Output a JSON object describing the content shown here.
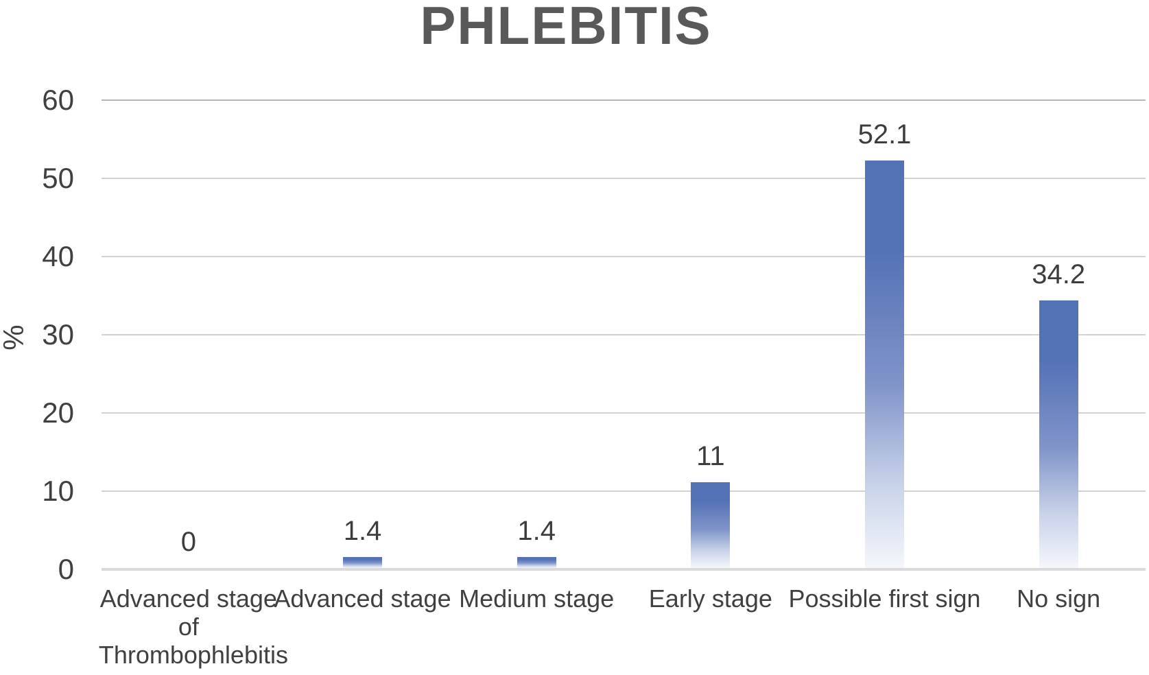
{
  "chart_data": {
    "type": "bar",
    "title": "PHLEBITIS",
    "xlabel": "",
    "ylabel": "%",
    "categories": [
      "Advanced stage of Thrombophlebitis",
      "Advanced stage",
      "Medium stage",
      "Early stage",
      "Possible first sign",
      "No sign"
    ],
    "values": [
      0,
      1.4,
      1.4,
      11,
      52.1,
      34.2
    ],
    "value_labels": [
      "0",
      "1.4",
      "1.4",
      "11",
      "52.1",
      "34.2"
    ],
    "ylim": [
      0,
      60
    ],
    "yticks": [
      0,
      10,
      20,
      30,
      40,
      50,
      60
    ],
    "grid": true,
    "legend": false,
    "colors": {
      "bar_top": "#5472b6",
      "bar_mid": "#8094c9",
      "bar_light": "#c9d3e9",
      "bar_fade": "#f4f7fb",
      "gridline": "#d2d2d2",
      "top_gridline": "#b5b5b5",
      "baseline": "#dadada",
      "text": "#404040",
      "title": "#595959"
    }
  }
}
